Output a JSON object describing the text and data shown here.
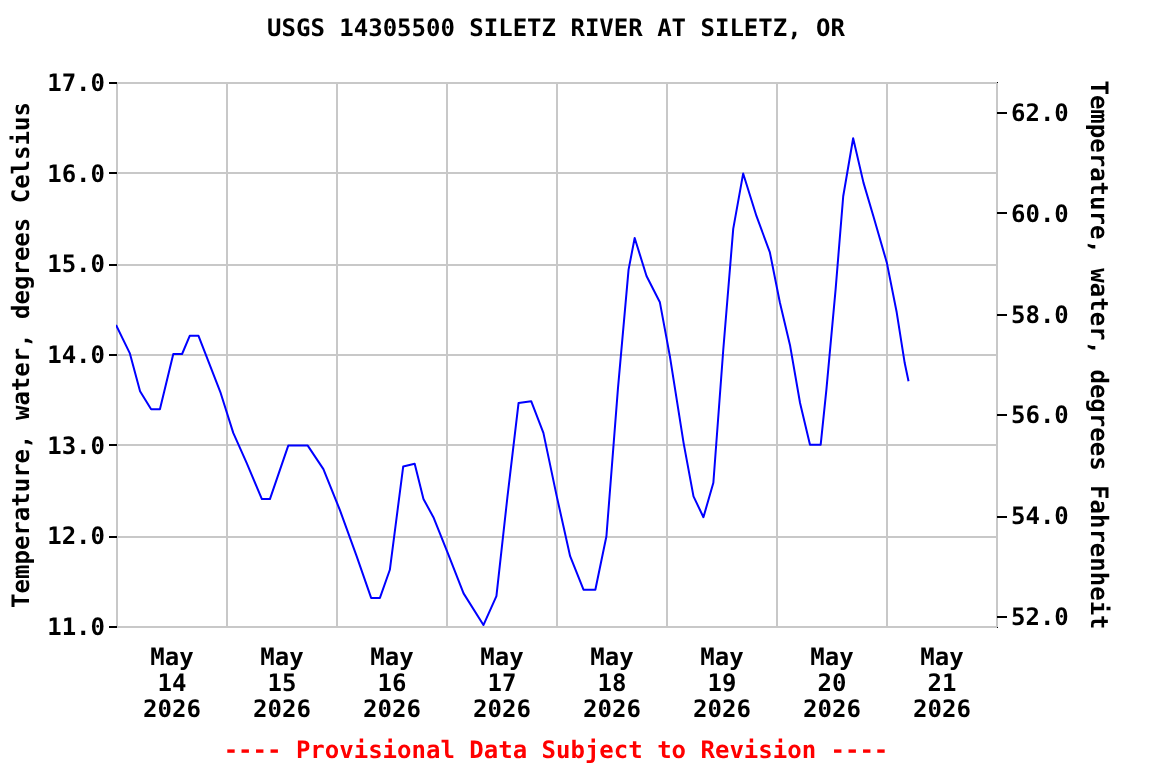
{
  "chart_data": {
    "type": "line",
    "title": "USGS 14305500 SILETZ RIVER AT SILETZ, OR",
    "ylabel": "Temperature, water, degrees Celsius",
    "y2label": "Temperature, water, degrees Fahrenheit",
    "annotations": [
      "---- Provisional Data Subject to Revision ----"
    ],
    "x": [
      "2026-05-14T00:00",
      "2026-05-14T03:00",
      "2026-05-14T05:15",
      "2026-05-14T07:40",
      "2026-05-14T09:35",
      "2026-05-14T12:30",
      "2026-05-14T14:25",
      "2026-05-14T16:05",
      "2026-05-14T18:00",
      "2026-05-14T22:50",
      "2026-05-15T01:35",
      "2026-05-15T04:30",
      "2026-05-15T07:50",
      "2026-05-15T09:35",
      "2026-05-15T13:35",
      "2026-05-15T17:50",
      "2026-05-15T21:15",
      "2026-05-16T00:50",
      "2026-05-16T04:30",
      "2026-05-16T07:40",
      "2026-05-16T09:35",
      "2026-05-16T11:45",
      "2026-05-16T14:40",
      "2026-05-16T17:10",
      "2026-05-16T19:05",
      "2026-05-16T21:15",
      "2026-05-17T00:30",
      "2026-05-17T03:50",
      "2026-05-17T08:10",
      "2026-05-17T11:00",
      "2026-05-17T13:25",
      "2026-05-17T15:50",
      "2026-05-17T18:35",
      "2026-05-17T21:15",
      "2026-05-18T00:10",
      "2026-05-18T03:05",
      "2026-05-18T06:00",
      "2026-05-18T08:35",
      "2026-05-18T11:00",
      "2026-05-18T13:30",
      "2026-05-18T15:50",
      "2026-05-18T17:10",
      "2026-05-18T19:45",
      "2026-05-18T22:40",
      "2026-05-19T00:50",
      "2026-05-19T03:50",
      "2026-05-19T06:00",
      "2026-05-19T08:10",
      "2026-05-19T10:20",
      "2026-05-19T12:30",
      "2026-05-19T14:40",
      "2026-05-19T16:50",
      "2026-05-19T19:45",
      "2026-05-19T22:40",
      "2026-05-20T00:50",
      "2026-05-20T03:05",
      "2026-05-20T05:15",
      "2026-05-20T07:25",
      "2026-05-20T09:45",
      "2026-05-20T11:00",
      "2026-05-20T13:00",
      "2026-05-20T14:40",
      "2026-05-20T16:50",
      "2026-05-20T19:05",
      "2026-05-20T21:15",
      "2026-05-21T00:10",
      "2026-05-21T02:20",
      "2026-05-21T04:05",
      "2026-05-21T04:55"
    ],
    "series": [
      {
        "color": "#0000ff",
        "values": [
          14.32,
          14.01,
          13.59,
          13.39,
          13.39,
          14.0,
          14.0,
          14.2,
          14.2,
          13.57,
          13.13,
          12.8,
          12.4,
          12.4,
          12.99,
          12.99,
          12.73,
          12.28,
          11.77,
          11.31,
          11.31,
          11.62,
          12.76,
          12.79,
          12.4,
          12.2,
          11.79,
          11.36,
          11.01,
          11.33,
          12.43,
          13.46,
          13.48,
          13.13,
          12.43,
          11.77,
          11.4,
          11.4,
          11.99,
          13.61,
          14.93,
          15.28,
          14.86,
          14.57,
          13.98,
          13.02,
          12.43,
          12.2,
          12.58,
          14.05,
          15.38,
          15.99,
          15.52,
          15.12,
          14.57,
          14.09,
          13.46,
          13.0,
          13.0,
          13.61,
          14.71,
          15.74,
          16.38,
          15.89,
          15.52,
          15.01,
          14.46,
          13.9,
          13.7
        ]
      }
    ],
    "xlim": [
      "2026-05-14T00:00",
      "2026-05-22T00:00"
    ],
    "xticks": [
      {
        "value": "2026-05-14T00:00",
        "label": null
      },
      {
        "value": "2026-05-14T12:00",
        "label": "May 14 2026"
      },
      {
        "value": "2026-05-15T00:00",
        "label": null
      },
      {
        "value": "2026-05-15T12:00",
        "label": "May 15 2026"
      },
      {
        "value": "2026-05-16T00:00",
        "label": null
      },
      {
        "value": "2026-05-16T12:00",
        "label": "May 16 2026"
      },
      {
        "value": "2026-05-17T00:00",
        "label": null
      },
      {
        "value": "2026-05-17T12:00",
        "label": "May 17 2026"
      },
      {
        "value": "2026-05-18T00:00",
        "label": null
      },
      {
        "value": "2026-05-18T12:00",
        "label": "May 18 2026"
      },
      {
        "value": "2026-05-19T00:00",
        "label": null
      },
      {
        "value": "2026-05-19T12:00",
        "label": "May 19 2026"
      },
      {
        "value": "2026-05-20T00:00",
        "label": null
      },
      {
        "value": "2026-05-20T12:00",
        "label": "May 20 2026"
      },
      {
        "value": "2026-05-21T00:00",
        "label": null
      },
      {
        "value": "2026-05-21T12:00",
        "label": "May 21 2026"
      },
      {
        "value": "2026-05-22T00:00",
        "label": null
      }
    ],
    "ylim": [
      11,
      17
    ],
    "yticks": [
      {
        "value": 11,
        "label": "11.0"
      },
      {
        "value": 12,
        "label": "12.0"
      },
      {
        "value": 13,
        "label": "13.0"
      },
      {
        "value": 14,
        "label": "14.0"
      },
      {
        "value": 15,
        "label": "15.0"
      },
      {
        "value": 16,
        "label": "16.0"
      },
      {
        "value": 17,
        "label": "17.0"
      }
    ],
    "y2lim": [
      51.8,
      62.6
    ],
    "y2ticks": [
      {
        "value": 52,
        "label": "52.0"
      },
      {
        "value": 54,
        "label": "54.0"
      },
      {
        "value": 56,
        "label": "56.0"
      },
      {
        "value": 58,
        "label": "58.0"
      },
      {
        "value": 60,
        "label": "60.0"
      },
      {
        "value": 62,
        "label": "62.0"
      }
    ],
    "grid": true
  }
}
